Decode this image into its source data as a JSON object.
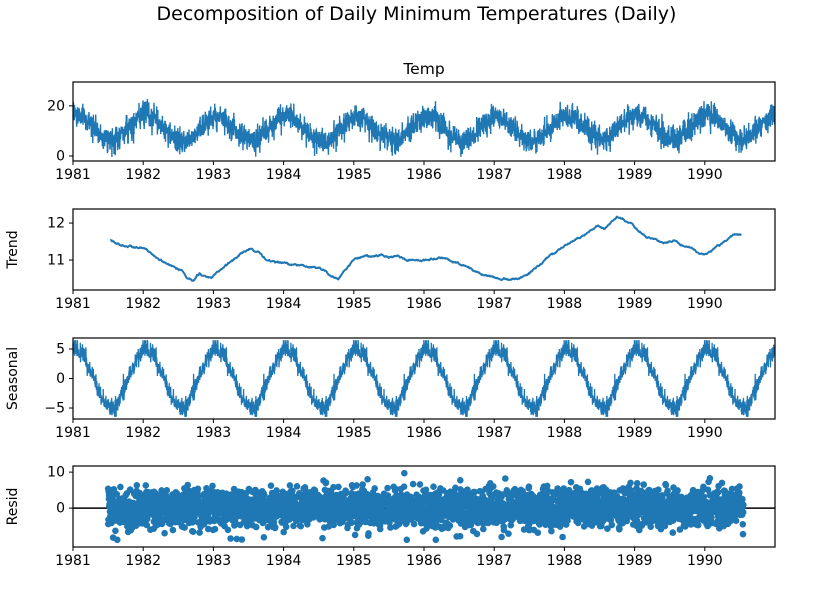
{
  "figure": {
    "title": "Decomposition of Daily Minimum Temperatures (Daily)",
    "background": "#ffffff",
    "series_color": "#1f77b4",
    "axis_color": "#000000",
    "zero_line_color": "#000000"
  },
  "chart_data": [
    {
      "panel": "observed",
      "type": "line",
      "title": "Temp",
      "ylabel": "",
      "x_ticks": [
        1981,
        1982,
        1983,
        1984,
        1985,
        1986,
        1987,
        1988,
        1989,
        1990
      ],
      "xlim": [
        1981,
        1991
      ],
      "y_ticks": [
        0,
        20
      ],
      "ylim": [
        -2,
        29.5
      ],
      "x_start": 1981.0,
      "x_end": 1990.997,
      "samples_per_year": 365,
      "model": "trend + seasonal + noise",
      "noise_sd": 2.35,
      "clip": [
        -0.5,
        27.2
      ],
      "value_range_observed": [
        0,
        26.3
      ]
    },
    {
      "panel": "trend",
      "type": "line",
      "title": "",
      "ylabel": "Trend",
      "x_ticks": [
        1981,
        1982,
        1983,
        1984,
        1985,
        1986,
        1987,
        1988,
        1989,
        1990
      ],
      "xlim": [
        1981,
        1991
      ],
      "y_ticks": [
        11,
        12
      ],
      "ylim": [
        10.19,
        12.38
      ],
      "x_start": 1981.53,
      "x_end": 1990.52,
      "jitter_sd": 0.03,
      "control_points": [
        [
          1981.53,
          11.52
        ],
        [
          1981.62,
          11.45
        ],
        [
          1981.72,
          11.38
        ],
        [
          1981.83,
          11.36
        ],
        [
          1981.93,
          11.33
        ],
        [
          1982.02,
          11.3
        ],
        [
          1982.12,
          11.18
        ],
        [
          1982.22,
          11.0
        ],
        [
          1982.32,
          10.92
        ],
        [
          1982.45,
          10.82
        ],
        [
          1982.55,
          10.7
        ],
        [
          1982.63,
          10.52
        ],
        [
          1982.72,
          10.46
        ],
        [
          1982.8,
          10.63
        ],
        [
          1982.88,
          10.55
        ],
        [
          1982.97,
          10.52
        ],
        [
          1983.08,
          10.68
        ],
        [
          1983.2,
          10.85
        ],
        [
          1983.32,
          11.05
        ],
        [
          1983.45,
          11.23
        ],
        [
          1983.55,
          11.33
        ],
        [
          1983.65,
          11.2
        ],
        [
          1983.75,
          11.02
        ],
        [
          1983.85,
          10.95
        ],
        [
          1984.0,
          10.92
        ],
        [
          1984.15,
          10.88
        ],
        [
          1984.3,
          10.85
        ],
        [
          1984.45,
          10.8
        ],
        [
          1984.58,
          10.72
        ],
        [
          1984.68,
          10.55
        ],
        [
          1984.78,
          10.5
        ],
        [
          1984.9,
          10.78
        ],
        [
          1985.0,
          11.0
        ],
        [
          1985.12,
          11.08
        ],
        [
          1985.25,
          11.1
        ],
        [
          1985.38,
          11.15
        ],
        [
          1985.5,
          11.05
        ],
        [
          1985.62,
          11.1
        ],
        [
          1985.75,
          11.0
        ],
        [
          1985.88,
          10.95
        ],
        [
          1986.0,
          11.0
        ],
        [
          1986.12,
          11.06
        ],
        [
          1986.25,
          11.05
        ],
        [
          1986.4,
          10.98
        ],
        [
          1986.55,
          10.85
        ],
        [
          1986.7,
          10.72
        ],
        [
          1986.85,
          10.6
        ],
        [
          1987.0,
          10.52
        ],
        [
          1987.12,
          10.5
        ],
        [
          1987.25,
          10.48
        ],
        [
          1987.35,
          10.52
        ],
        [
          1987.48,
          10.62
        ],
        [
          1987.6,
          10.8
        ],
        [
          1987.72,
          11.0
        ],
        [
          1987.85,
          11.18
        ],
        [
          1987.97,
          11.35
        ],
        [
          1988.1,
          11.52
        ],
        [
          1988.22,
          11.63
        ],
        [
          1988.35,
          11.78
        ],
        [
          1988.48,
          11.9
        ],
        [
          1988.58,
          11.85
        ],
        [
          1988.68,
          12.05
        ],
        [
          1988.75,
          12.18
        ],
        [
          1988.85,
          12.08
        ],
        [
          1988.95,
          11.98
        ],
        [
          1989.05,
          11.78
        ],
        [
          1989.18,
          11.62
        ],
        [
          1989.3,
          11.52
        ],
        [
          1989.42,
          11.45
        ],
        [
          1989.55,
          11.52
        ],
        [
          1989.65,
          11.42
        ],
        [
          1989.78,
          11.35
        ],
        [
          1989.9,
          11.22
        ],
        [
          1990.0,
          11.18
        ],
        [
          1990.12,
          11.3
        ],
        [
          1990.25,
          11.45
        ],
        [
          1990.35,
          11.58
        ],
        [
          1990.45,
          11.7
        ],
        [
          1990.52,
          11.65
        ]
      ]
    },
    {
      "panel": "seasonal",
      "type": "line",
      "title": "",
      "ylabel": "Seasonal",
      "x_ticks": [
        1981,
        1982,
        1983,
        1984,
        1985,
        1986,
        1987,
        1988,
        1989,
        1990
      ],
      "xlim": [
        1981,
        1991
      ],
      "y_ticks": [
        -5,
        0,
        5
      ],
      "ylim": [
        -6.86,
        6.86
      ],
      "x_start": 1981.0,
      "x_end": 1990.997,
      "period_years": 1,
      "amplitude": 5.0,
      "peak_day_of_year": 15,
      "template_noise_sd": 0.85,
      "value_range": [
        -6.3,
        6.3
      ]
    },
    {
      "panel": "resid",
      "type": "scatter",
      "title": "",
      "ylabel": "Resid",
      "x_ticks": [
        1981,
        1982,
        1983,
        1984,
        1985,
        1986,
        1987,
        1988,
        1989,
        1990
      ],
      "xlim": [
        1981,
        1991
      ],
      "y_ticks": [
        0,
        10
      ],
      "ylim": [
        -10.8,
        11.7
      ],
      "x_start": 1981.5,
      "x_end": 1990.55,
      "noise_sd": 2.7,
      "clip": [
        -8.8,
        11.4
      ],
      "zero_line": true,
      "marker_radius_px": 3.3
    }
  ]
}
